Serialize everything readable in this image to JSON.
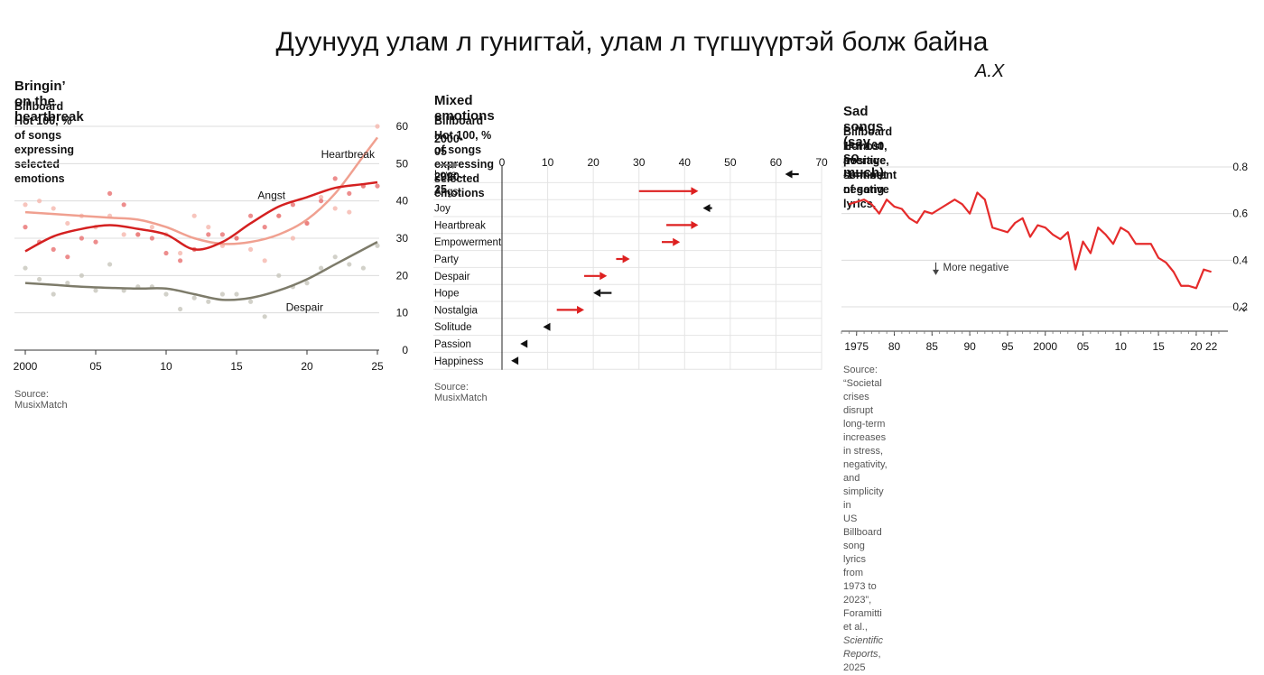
{
  "page": {
    "title": "Дуунууд улам л гунигтай, улам л түгшүүртэй болж байна",
    "author": "A.X"
  },
  "colors": {
    "heartbreak": "#f0a090",
    "angst": "#d42020",
    "despair": "#7d7b6a",
    "arrow_up": "#dd2020",
    "arrow_down": "#111111",
    "sentiment": "#e52b2b",
    "grid": "#dcdcdc"
  },
  "chart_data": [
    {
      "type": "line",
      "title": "Bringin’ on the heartbreak",
      "subtitle": "Billboard Hot 100, % of songs expressing selected emotions",
      "source": "Source: MusixMatch",
      "x_ticks": [
        "2000",
        "05",
        "10",
        "15",
        "20",
        "25"
      ],
      "y_ticks": [
        "0",
        "10",
        "20",
        "30",
        "40",
        "50",
        "60"
      ],
      "xlim": [
        2000,
        2025
      ],
      "ylim": [
        0,
        60
      ],
      "series": [
        {
          "name": "Heartbreak",
          "x": [
            2000,
            2002,
            2004,
            2006,
            2008,
            2010,
            2012,
            2014,
            2016,
            2018,
            2020,
            2022,
            2024,
            2025
          ],
          "values": [
            37,
            36.5,
            36,
            35.5,
            35,
            33,
            30,
            28.5,
            29,
            31,
            35,
            42,
            52,
            57
          ]
        },
        {
          "name": "Angst",
          "x": [
            2000,
            2002,
            2004,
            2006,
            2008,
            2010,
            2012,
            2014,
            2016,
            2018,
            2020,
            2022,
            2024,
            2025
          ],
          "values": [
            26.5,
            30.5,
            32.5,
            33.5,
            32.5,
            31,
            27,
            29,
            34,
            38.5,
            41,
            43.5,
            44.5,
            45
          ]
        },
        {
          "name": "Despair",
          "x": [
            2000,
            2002,
            2004,
            2006,
            2008,
            2010,
            2012,
            2014,
            2016,
            2018,
            2020,
            2022,
            2024,
            2025
          ],
          "values": [
            18,
            17.5,
            17,
            16.7,
            16.5,
            16.5,
            15,
            13.5,
            14,
            16,
            19,
            23,
            27,
            29
          ]
        }
      ],
      "points": {
        "Heartbreak": [
          [
            2000,
            39
          ],
          [
            2001,
            40
          ],
          [
            2002,
            38
          ],
          [
            2003,
            34
          ],
          [
            2004,
            36
          ],
          [
            2005,
            33
          ],
          [
            2006,
            36
          ],
          [
            2007,
            31
          ],
          [
            2008,
            31
          ],
          [
            2009,
            33
          ],
          [
            2010,
            31
          ],
          [
            2011,
            26
          ],
          [
            2012,
            36
          ],
          [
            2013,
            33
          ],
          [
            2014,
            28
          ],
          [
            2015,
            30
          ],
          [
            2016,
            27
          ],
          [
            2017,
            24
          ],
          [
            2018,
            36
          ],
          [
            2019,
            30
          ],
          [
            2020,
            34
          ],
          [
            2021,
            41
          ],
          [
            2022,
            38
          ],
          [
            2023,
            37
          ],
          [
            2024,
            44
          ],
          [
            2025,
            60
          ]
        ],
        "Angst": [
          [
            2000,
            33
          ],
          [
            2001,
            29
          ],
          [
            2002,
            27
          ],
          [
            2003,
            25
          ],
          [
            2004,
            30
          ],
          [
            2005,
            29
          ],
          [
            2006,
            42
          ],
          [
            2007,
            39
          ],
          [
            2008,
            31
          ],
          [
            2009,
            30
          ],
          [
            2010,
            26
          ],
          [
            2011,
            24
          ],
          [
            2012,
            27
          ],
          [
            2013,
            31
          ],
          [
            2014,
            31
          ],
          [
            2015,
            30
          ],
          [
            2016,
            36
          ],
          [
            2017,
            33
          ],
          [
            2018,
            36
          ],
          [
            2019,
            39
          ],
          [
            2020,
            34
          ],
          [
            2021,
            40
          ],
          [
            2022,
            46
          ],
          [
            2023,
            42
          ],
          [
            2024,
            44
          ],
          [
            2025,
            44
          ]
        ],
        "Despair": [
          [
            2000,
            22
          ],
          [
            2001,
            19
          ],
          [
            2002,
            15
          ],
          [
            2003,
            18
          ],
          [
            2004,
            20
          ],
          [
            2005,
            16
          ],
          [
            2006,
            23
          ],
          [
            2007,
            16
          ],
          [
            2008,
            17
          ],
          [
            2009,
            17
          ],
          [
            2010,
            15
          ],
          [
            2011,
            11
          ],
          [
            2012,
            14
          ],
          [
            2013,
            13
          ],
          [
            2014,
            15
          ],
          [
            2015,
            15
          ],
          [
            2016,
            13
          ],
          [
            2017,
            9
          ],
          [
            2018,
            20
          ],
          [
            2019,
            17
          ],
          [
            2020,
            18
          ],
          [
            2021,
            22
          ],
          [
            2022,
            25
          ],
          [
            2023,
            23
          ],
          [
            2024,
            22
          ],
          [
            2025,
            28
          ]
        ]
      }
    },
    {
      "type": "bar",
      "title": "Mixed emotions",
      "subtitle": "Billboard Hot 100, % of songs expressing selected emotions",
      "legend_from": "2000-05",
      "legend_to": "2020-25",
      "source": "Source: MusixMatch",
      "x_ticks": [
        "0",
        "10",
        "20",
        "30",
        "40",
        "50",
        "60",
        "70"
      ],
      "xlim": [
        0,
        70
      ],
      "categories": [
        "Love",
        "Angst",
        "Joy",
        "Heartbreak",
        "Empowerment",
        "Party",
        "Despair",
        "Hope",
        "Nostalgia",
        "Solitude",
        "Passion",
        "Happiness"
      ],
      "from": [
        65,
        30,
        46,
        36,
        35,
        25,
        18,
        24,
        12,
        10,
        5,
        3
      ],
      "to": [
        62,
        43,
        44,
        43,
        39,
        28,
        23,
        20,
        18,
        9,
        4,
        2
      ]
    },
    {
      "type": "line",
      "title": "Sad songs (say so much)",
      "subtitle": "Billboard Hot 100, average sentiment of song lyrics,",
      "subtitle2": "1=most positive, -1=most negative",
      "annotation": "More negative",
      "source_a": "Source: “Societal crises disrupt long-term increases in stress, negativity, and simplicity in",
      "source_b": "US Billboard song lyrics from 1973 to 2023”, Foramitti et al., ",
      "source_c": "Scientific Reports",
      "source_d": ", 2025",
      "x_ticks": [
        "1975",
        "80",
        "85",
        "90",
        "95",
        "2000",
        "05",
        "10",
        "15",
        "20",
        "22"
      ],
      "y_ticks": [
        "0.2",
        "0.4",
        "0.6",
        "0.8"
      ],
      "xlim": [
        1973,
        2023
      ],
      "ylim": [
        0.2,
        0.8
      ],
      "x": [
        1974,
        1975,
        1976,
        1977,
        1978,
        1979,
        1980,
        1981,
        1982,
        1983,
        1984,
        1985,
        1986,
        1987,
        1988,
        1989,
        1990,
        1991,
        1992,
        1993,
        1994,
        1995,
        1996,
        1997,
        1998,
        1999,
        2000,
        2001,
        2002,
        2003,
        2004,
        2005,
        2006,
        2007,
        2008,
        2009,
        2010,
        2011,
        2012,
        2013,
        2014,
        2015,
        2016,
        2017,
        2018,
        2019,
        2020,
        2021,
        2022
      ],
      "values": [
        0.64,
        0.65,
        0.66,
        0.64,
        0.6,
        0.66,
        0.63,
        0.62,
        0.58,
        0.56,
        0.61,
        0.6,
        0.62,
        0.64,
        0.66,
        0.64,
        0.6,
        0.69,
        0.66,
        0.54,
        0.53,
        0.52,
        0.56,
        0.58,
        0.5,
        0.55,
        0.54,
        0.51,
        0.49,
        0.52,
        0.36,
        0.48,
        0.43,
        0.54,
        0.51,
        0.47,
        0.54,
        0.52,
        0.47,
        0.47,
        0.47,
        0.41,
        0.39,
        0.35,
        0.29,
        0.29,
        0.28,
        0.36,
        0.35
      ]
    }
  ]
}
